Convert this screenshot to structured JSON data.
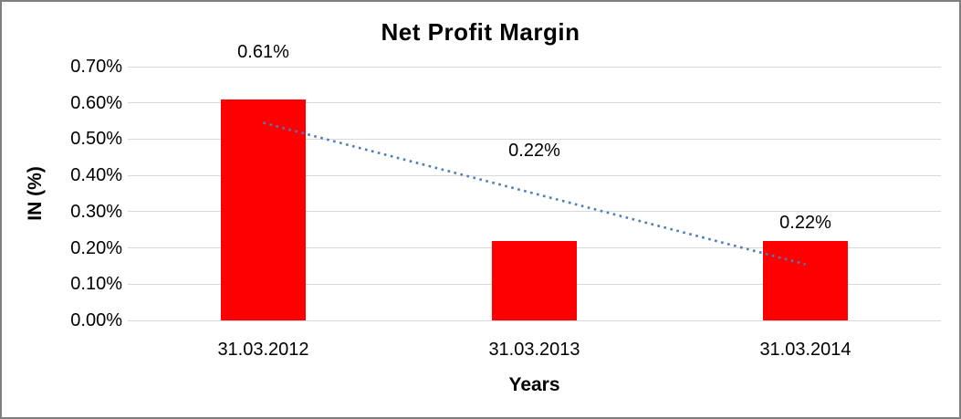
{
  "window": {
    "background": "#ffffff",
    "border_color": "#7f7f7f"
  },
  "chart_data": {
    "type": "bar",
    "title": "Net Profit Margin",
    "xlabel": "Years",
    "ylabel": "IN (%)",
    "categories": [
      "31.03.2012",
      "31.03.2013",
      "31.03.2014"
    ],
    "values": [
      0.61,
      0.22,
      0.22
    ],
    "data_labels": [
      "0.61%",
      "0.22%",
      "0.22%"
    ],
    "bar_color": "#ff0000",
    "gridline_color": "#d9d9d9",
    "grid": "on",
    "legend": "none",
    "y_axis": {
      "min": 0.0,
      "max": 0.7,
      "ticks": [
        {
          "label": "0.00%",
          "value": 0.0
        },
        {
          "label": "0.10%",
          "value": 0.1
        },
        {
          "label": "0.20%",
          "value": 0.2
        },
        {
          "label": "0.30%",
          "value": 0.3
        },
        {
          "label": "0.40%",
          "value": 0.4
        },
        {
          "label": "0.50%",
          "value": 0.5
        },
        {
          "label": "0.60%",
          "value": 0.6
        },
        {
          "label": "0.70%",
          "value": 0.7
        }
      ]
    },
    "trendline": {
      "type": "linear",
      "style": "dotted",
      "color": "#4a7ebb",
      "start_value": 0.545,
      "end_value": 0.155,
      "start_category_index": 0,
      "end_category_index": 2
    }
  }
}
